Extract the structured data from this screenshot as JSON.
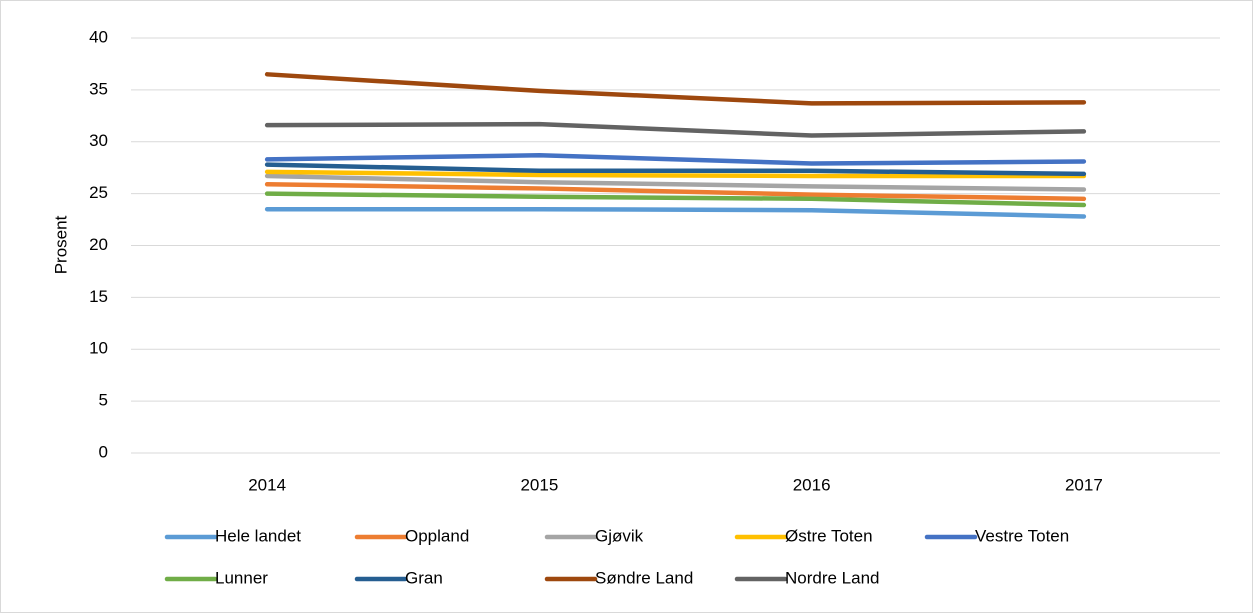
{
  "chart_data": {
    "type": "line",
    "y_label": "Prosent",
    "categories": [
      "2014",
      "2015",
      "2016",
      "2017"
    ],
    "series": [
      {
        "name": "Hele landet",
        "color": "#5b9bd5",
        "values": [
          23.5,
          23.5,
          23.4,
          22.8
        ]
      },
      {
        "name": "Oppland",
        "color": "#ed7d31",
        "values": [
          25.9,
          25.5,
          24.9,
          24.5
        ]
      },
      {
        "name": "Gjøvik",
        "color": "#a5a5a5",
        "values": [
          26.7,
          26.1,
          25.7,
          25.4
        ]
      },
      {
        "name": "Østre Toten",
        "color": "#ffc000",
        "values": [
          27.1,
          26.8,
          26.7,
          26.7
        ]
      },
      {
        "name": "Vestre Toten",
        "color": "#4472c4",
        "values": [
          28.3,
          28.7,
          27.9,
          28.1
        ]
      },
      {
        "name": "Lunner",
        "color": "#70ad47",
        "values": [
          25.0,
          24.7,
          24.5,
          23.9
        ]
      },
      {
        "name": "Gran",
        "color": "#255e91",
        "values": [
          27.8,
          27.2,
          27.2,
          26.9
        ]
      },
      {
        "name": "Søndre Land",
        "color": "#9e480e",
        "values": [
          36.5,
          34.9,
          33.7,
          33.8
        ]
      },
      {
        "name": "Nordre Land",
        "color": "#636363",
        "values": [
          31.6,
          31.7,
          30.6,
          31.0
        ]
      }
    ],
    "ylim": [
      0,
      40
    ],
    "yticks": [
      0,
      5,
      10,
      15,
      20,
      25,
      30,
      35,
      40
    ],
    "grid": true,
    "legend": "bottom"
  }
}
